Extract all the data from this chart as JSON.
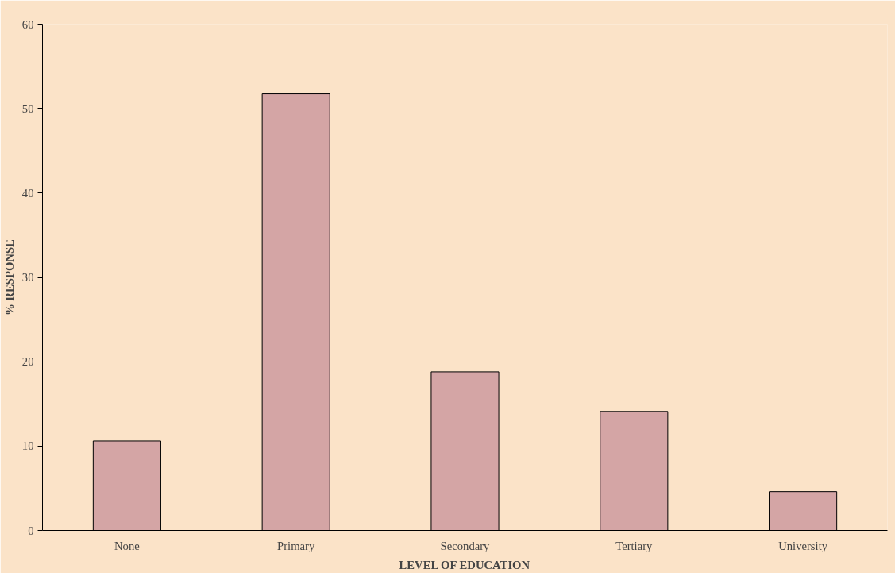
{
  "chart_data": {
    "type": "bar",
    "xlabel": "LEVEL OF EDUCATION",
    "ylabel": "% RESPONSE",
    "categories": [
      "None",
      "Primary",
      "Secondary",
      "Tertiary",
      "University"
    ],
    "values": [
      10.6,
      51.8,
      18.8,
      14.1,
      4.6
    ],
    "color": "#d4a5a5",
    "ylim": [
      0,
      60
    ],
    "yticks": [
      0,
      10,
      20,
      30,
      40,
      50,
      60
    ],
    "grid": false
  }
}
